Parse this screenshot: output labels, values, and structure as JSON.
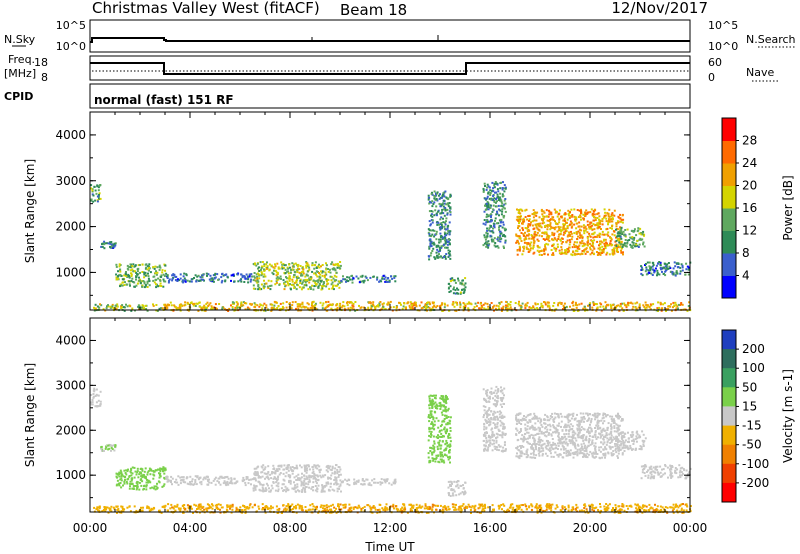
{
  "header": {
    "title": "Christmas Valley West (fitACF)",
    "beam": "Beam 18",
    "date": "12/Nov/2017"
  },
  "labels": {
    "nsky": "N.Sky",
    "nsearch": "N.Search",
    "freq_line1": "Freq.",
    "freq_line2": "[MHz]",
    "nave": "Nave",
    "cpid": "CPID",
    "cpid_value": "normal (fast) 151 RF"
  },
  "noise_ticks_left": [
    "10^5",
    "10^0"
  ],
  "noise_ticks_right": [
    "10^5",
    "10^0"
  ],
  "freq_ticks_left": [
    "18",
    "8"
  ],
  "nave_ticks_right": [
    "60",
    "0"
  ],
  "chart_data": [
    {
      "type": "heatmap",
      "name": "power-panel",
      "xlabel": "",
      "ylabel": "Slant Range [km]",
      "ylim": [
        180,
        4500
      ],
      "xlim_hours": [
        0,
        24
      ],
      "y_ticks": [
        1000,
        2000,
        3000,
        4000
      ],
      "colorbar": {
        "label": "Power [dB]",
        "ticks": [
          "4",
          "8",
          "12",
          "16",
          "20",
          "24",
          "28"
        ],
        "colors": [
          "#0000ff",
          "#3a5fcd",
          "#2e8b57",
          "#5fa85f",
          "#d4d400",
          "#f0a000",
          "#ff6a00",
          "#ff0000"
        ]
      },
      "echo_regions": [
        {
          "t0": 0.1,
          "t1": 2.9,
          "r0": 180,
          "r1": 330,
          "value": 16
        },
        {
          "t0": 2.9,
          "t1": 24,
          "r0": 180,
          "r1": 380,
          "value": 20
        },
        {
          "t0": 0.0,
          "t1": 0.4,
          "r0": 2550,
          "r1": 2950,
          "value": 12
        },
        {
          "t0": 0.4,
          "t1": 1.0,
          "r0": 1550,
          "r1": 1700,
          "value": 8
        },
        {
          "t0": 1.0,
          "t1": 3.0,
          "r0": 700,
          "r1": 1200,
          "value": 14
        },
        {
          "t0": 3.0,
          "t1": 6.5,
          "r0": 800,
          "r1": 1000,
          "value": 8
        },
        {
          "t0": 6.5,
          "t1": 10.0,
          "r0": 650,
          "r1": 1250,
          "value": 16
        },
        {
          "t0": 10.0,
          "t1": 12.2,
          "r0": 800,
          "r1": 950,
          "value": 8
        },
        {
          "t0": 13.5,
          "t1": 14.4,
          "r0": 1300,
          "r1": 2800,
          "value": 10
        },
        {
          "t0": 14.3,
          "t1": 15.0,
          "r0": 550,
          "r1": 900,
          "value": 12
        },
        {
          "t0": 15.7,
          "t1": 16.6,
          "r0": 1550,
          "r1": 3000,
          "value": 10
        },
        {
          "t0": 17.0,
          "t1": 21.3,
          "r0": 1400,
          "r1": 2400,
          "value": 22
        },
        {
          "t0": 21.0,
          "t1": 22.2,
          "r0": 1550,
          "r1": 2000,
          "value": 12
        },
        {
          "t0": 22.0,
          "t1": 24.0,
          "r0": 950,
          "r1": 1250,
          "value": 8
        }
      ]
    },
    {
      "type": "heatmap",
      "name": "velocity-panel",
      "xlabel": "Time UT",
      "ylabel": "Slant Range [km]",
      "ylim": [
        180,
        4500
      ],
      "xlim_hours": [
        0,
        24
      ],
      "y_ticks": [
        1000,
        2000,
        3000,
        4000
      ],
      "x_ticks": [
        "00:00",
        "04:00",
        "08:00",
        "12:00",
        "16:00",
        "20:00",
        "00:00"
      ],
      "colorbar": {
        "label": "Velocity [m s-1]",
        "ticks": [
          "200",
          "100",
          "50",
          "15",
          "-15",
          "-50",
          "-100",
          "-200"
        ],
        "colors": [
          "#1f3fbf",
          "#2e6e5e",
          "#3aa060",
          "#7ad04a",
          "#c8c8c8",
          "#f0b000",
          "#f08000",
          "#f04000",
          "#ff0000"
        ]
      },
      "echo_regions": [
        {
          "t0": 0.1,
          "t1": 2.9,
          "r0": 180,
          "r1": 330,
          "value": -30
        },
        {
          "t0": 2.9,
          "t1": 24,
          "r0": 180,
          "r1": 380,
          "value": -40
        },
        {
          "t0": 0.0,
          "t1": 0.4,
          "r0": 2550,
          "r1": 2950,
          "value": 0
        },
        {
          "t0": 0.4,
          "t1": 1.0,
          "r0": 1550,
          "r1": 1700,
          "value": 20
        },
        {
          "t0": 1.0,
          "t1": 3.0,
          "r0": 700,
          "r1": 1200,
          "value": 30
        },
        {
          "t0": 3.0,
          "t1": 6.5,
          "r0": 800,
          "r1": 1000,
          "value": 0
        },
        {
          "t0": 6.5,
          "t1": 10.0,
          "r0": 650,
          "r1": 1250,
          "value": 0
        },
        {
          "t0": 10.0,
          "t1": 12.2,
          "r0": 800,
          "r1": 950,
          "value": 0
        },
        {
          "t0": 13.5,
          "t1": 14.4,
          "r0": 1300,
          "r1": 2800,
          "value": 30
        },
        {
          "t0": 14.3,
          "t1": 15.0,
          "r0": 550,
          "r1": 900,
          "value": 0
        },
        {
          "t0": 15.7,
          "t1": 16.6,
          "r0": 1550,
          "r1": 3000,
          "value": 0
        },
        {
          "t0": 17.0,
          "t1": 21.3,
          "r0": 1400,
          "r1": 2400,
          "value": 0
        },
        {
          "t0": 21.0,
          "t1": 22.2,
          "r0": 1550,
          "r1": 2000,
          "value": 0
        },
        {
          "t0": 22.0,
          "t1": 24.0,
          "r0": 950,
          "r1": 1250,
          "value": 0
        }
      ]
    }
  ]
}
